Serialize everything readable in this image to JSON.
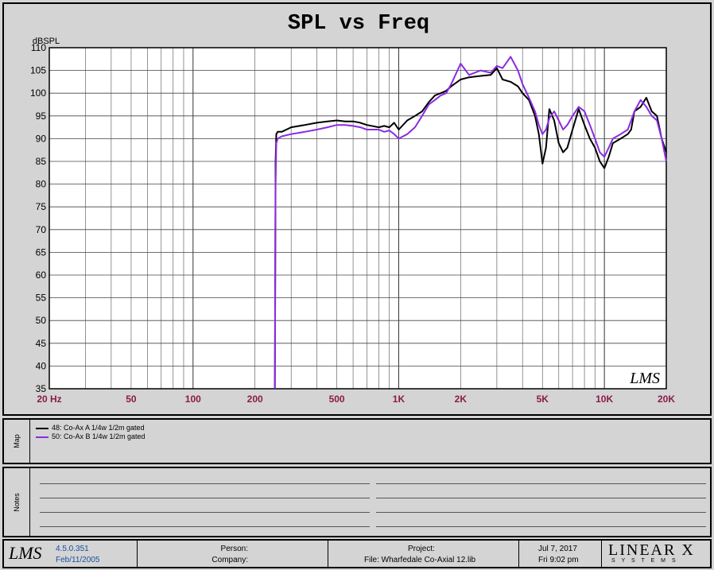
{
  "chart_data": {
    "type": "line",
    "title": "SPL vs Freq",
    "ylabel": "dBSPL",
    "xscale": "log",
    "xlim": [
      20,
      20000
    ],
    "ylim": [
      35,
      110
    ],
    "grid": true,
    "x_tick_labels": [
      "20 Hz",
      "50",
      "100",
      "200",
      "500",
      "1K",
      "2K",
      "5K",
      "10K",
      "20K"
    ],
    "y_tick_labels": [
      "35",
      "40",
      "45",
      "50",
      "55",
      "60",
      "65",
      "70",
      "75",
      "80",
      "85",
      "90",
      "95",
      "100",
      "105",
      "110"
    ],
    "series": [
      {
        "name": "48: Co-Ax A  1/4w 1/2m gated",
        "color": "#000000",
        "x": [
          250,
          252,
          254,
          258,
          270,
          300,
          350,
          400,
          450,
          500,
          550,
          600,
          650,
          700,
          800,
          850,
          900,
          950,
          1000,
          1100,
          1200,
          1300,
          1400,
          1500,
          1600,
          1700,
          1800,
          2000,
          2200,
          2500,
          2800,
          3000,
          3200,
          3500,
          3800,
          4000,
          4300,
          4600,
          4800,
          5000,
          5200,
          5400,
          5700,
          6000,
          6300,
          6600,
          7000,
          7500,
          8000,
          8500,
          9000,
          9500,
          10000,
          10500,
          11000,
          12000,
          13000,
          13500,
          14000,
          15000,
          16000,
          17000,
          18000,
          19000,
          20000
        ],
        "y": [
          35,
          85,
          91,
          91.5,
          91.5,
          92.5,
          93,
          93.5,
          93.8,
          94,
          93.8,
          93.8,
          93.5,
          93,
          92.5,
          92.8,
          92.5,
          93.5,
          92,
          94,
          95,
          96,
          98,
          99.5,
          100,
          100.5,
          101.5,
          103,
          103.5,
          103.8,
          104,
          105.5,
          103,
          102.5,
          101.5,
          100,
          98.5,
          95,
          91,
          84.5,
          88,
          96.5,
          94,
          89,
          87,
          88,
          92,
          96.5,
          93,
          90,
          88,
          85,
          83.5,
          86,
          89,
          90,
          91,
          92,
          96,
          97,
          99,
          96,
          95,
          90,
          87
        ]
      },
      {
        "name": "50: Co-Ax B  1/4w 1/2m gated",
        "color": "#8a2be2",
        "x": [
          250,
          252,
          254,
          258,
          270,
          300,
          350,
          400,
          450,
          500,
          550,
          600,
          650,
          700,
          800,
          850,
          900,
          950,
          1000,
          1100,
          1200,
          1300,
          1400,
          1500,
          1600,
          1700,
          1800,
          2000,
          2200,
          2500,
          2800,
          3000,
          3200,
          3500,
          3800,
          4000,
          4300,
          4600,
          4800,
          5000,
          5200,
          5400,
          5700,
          6000,
          6300,
          6600,
          7000,
          7500,
          8000,
          8500,
          9000,
          9500,
          10000,
          10500,
          11000,
          12000,
          13000,
          13500,
          14000,
          15000,
          16000,
          17000,
          18000,
          19000,
          20000
        ],
        "y": [
          35,
          80,
          89,
          90,
          90.5,
          91,
          91.5,
          92,
          92.5,
          93,
          93,
          92.8,
          92.5,
          92,
          92,
          91.5,
          91.8,
          91,
          90,
          91,
          92.5,
          95,
          97.5,
          98.5,
          99.5,
          100,
          102,
          106.5,
          104,
          105,
          104.5,
          106,
          105.5,
          108,
          105,
          102,
          99,
          96,
          93,
          91,
          92,
          94.5,
          96,
          94,
          92,
          93,
          95,
          97,
          96,
          93,
          90,
          87,
          86,
          88,
          90,
          91,
          92,
          94,
          96,
          98.5,
          97,
          95,
          94,
          90,
          85
        ]
      }
    ]
  },
  "map": {
    "label": "Map"
  },
  "notes": {
    "label": "Notes"
  },
  "footer": {
    "version": "4.5.0.351",
    "version_date": "Feb/11/2005",
    "person_label": "Person:",
    "company_label": "Company:",
    "project_label": "Project:",
    "file_text": "File: Wharfedale Co-Axial 12.lib",
    "date": "Jul  7, 2017",
    "time": "Fri  9:02 pm",
    "brand": "LINEAR X",
    "brand_sub": "S Y S T E M S",
    "logo_text": "LMS"
  },
  "plot_logo": "LMS"
}
